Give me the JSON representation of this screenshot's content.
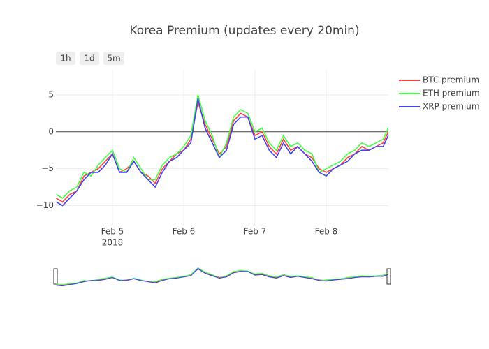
{
  "chart_data": {
    "type": "line",
    "title": "Korea Premium (updates every 20min)",
    "range_buttons": [
      "1h",
      "1d",
      "5m"
    ],
    "x": [
      4.21,
      4.3,
      4.4,
      4.5,
      4.6,
      4.7,
      4.8,
      4.9,
      5.0,
      5.1,
      5.2,
      5.3,
      5.4,
      5.5,
      5.6,
      5.7,
      5.8,
      5.9,
      6.0,
      6.1,
      6.2,
      6.3,
      6.4,
      6.5,
      6.6,
      6.7,
      6.8,
      6.9,
      7.0,
      7.1,
      7.2,
      7.3,
      7.4,
      7.5,
      7.6,
      7.7,
      7.8,
      7.9,
      8.0,
      8.1,
      8.2,
      8.3,
      8.4,
      8.5,
      8.6,
      8.7,
      8.8,
      8.87
    ],
    "x_year_label": "2018",
    "xlim": [
      4.206,
      8.873
    ],
    "xticks": [
      {
        "value": 5,
        "label": "Feb 5"
      },
      {
        "value": 6,
        "label": "Feb 6"
      },
      {
        "value": 7,
        "label": "Feb 7"
      },
      {
        "value": 8,
        "label": "Feb 8"
      }
    ],
    "ylim": [
      -12.6,
      8.4
    ],
    "yticks": [
      {
        "value": -10,
        "label": "−10"
      },
      {
        "value": -5,
        "label": "−5"
      },
      0,
      5
    ],
    "grid": true,
    "legend": "right",
    "series": [
      {
        "name": "BTC premium",
        "color": "#ff4444",
        "values": [
          -9,
          -9.5,
          -8.5,
          -8,
          -6,
          -5.5,
          -5,
          -4,
          -3,
          -5.5,
          -5,
          -4,
          -5.5,
          -6,
          -7,
          -5,
          -4,
          -3,
          -2.5,
          -1,
          4,
          1,
          -1,
          -3,
          -2,
          1.5,
          2.5,
          2,
          -0.5,
          0,
          -2,
          -3,
          -1,
          -2.5,
          -2,
          -3,
          -3.5,
          -5,
          -5.5,
          -5,
          -4.5,
          -3.5,
          -3,
          -2,
          -2.5,
          -2,
          -1.5,
          0
        ]
      },
      {
        "name": "ETH premium",
        "color": "#44ff44",
        "values": [
          -8.5,
          -9,
          -8,
          -7.5,
          -5.5,
          -6,
          -4.5,
          -3.5,
          -2.5,
          -5,
          -5.5,
          -3.5,
          -5,
          -6.5,
          -6.5,
          -4.5,
          -3.5,
          -3,
          -2,
          -0.5,
          5,
          1.5,
          -0.5,
          -3.5,
          -1.5,
          2,
          3,
          2.5,
          0,
          0.5,
          -1.5,
          -2.5,
          -0.5,
          -2,
          -1.5,
          -2.5,
          -3,
          -5.5,
          -5,
          -4.5,
          -4,
          -3,
          -2.5,
          -1.5,
          -2,
          -1.5,
          -1,
          0.5
        ]
      },
      {
        "name": "XRP premium",
        "color": "#4444ee",
        "values": [
          -9.5,
          -10,
          -9,
          -8,
          -6.5,
          -5.5,
          -5.5,
          -4.5,
          -3,
          -5.5,
          -5.5,
          -4,
          -5.5,
          -6.5,
          -7.5,
          -5.5,
          -4,
          -3.5,
          -2.5,
          -1.5,
          4.5,
          0.5,
          -1.5,
          -3.5,
          -2.5,
          1,
          2,
          2,
          -1,
          -0.5,
          -2.5,
          -3.5,
          -1.5,
          -3,
          -2,
          -3,
          -4,
          -5.5,
          -6,
          -5,
          -4.5,
          -4,
          -3,
          -2.5,
          -2.5,
          -2,
          -2,
          -0.5
        ]
      }
    ]
  }
}
